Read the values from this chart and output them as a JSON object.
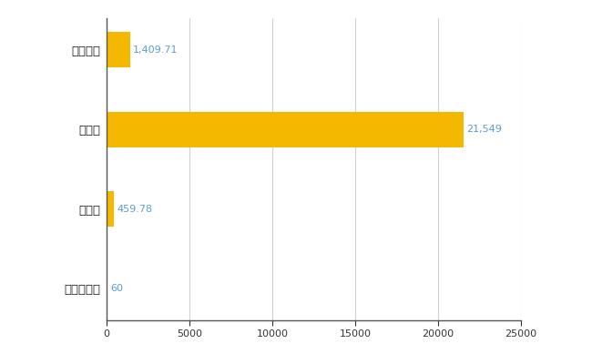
{
  "categories": [
    "新十津川町",
    "県平均",
    "県最大",
    "全国平均"
  ],
  "values": [
    60,
    459.78,
    21549,
    1409.71
  ],
  "bar_color": "#F5B800",
  "bar_labels": [
    "60",
    "459.78",
    "21,549",
    "1,409.71"
  ],
  "xlim": [
    0,
    25000
  ],
  "xticks": [
    0,
    5000,
    10000,
    15000,
    20000,
    25000
  ],
  "xtick_labels": [
    "0",
    "5000",
    "10000",
    "15000",
    "20000",
    "25000"
  ],
  "background_color": "#ffffff",
  "grid_color": "#d0d0d0",
  "label_color": "#5b9bd5",
  "bar_height": 0.45,
  "figsize": [
    6.5,
    4.0
  ],
  "dpi": 100
}
